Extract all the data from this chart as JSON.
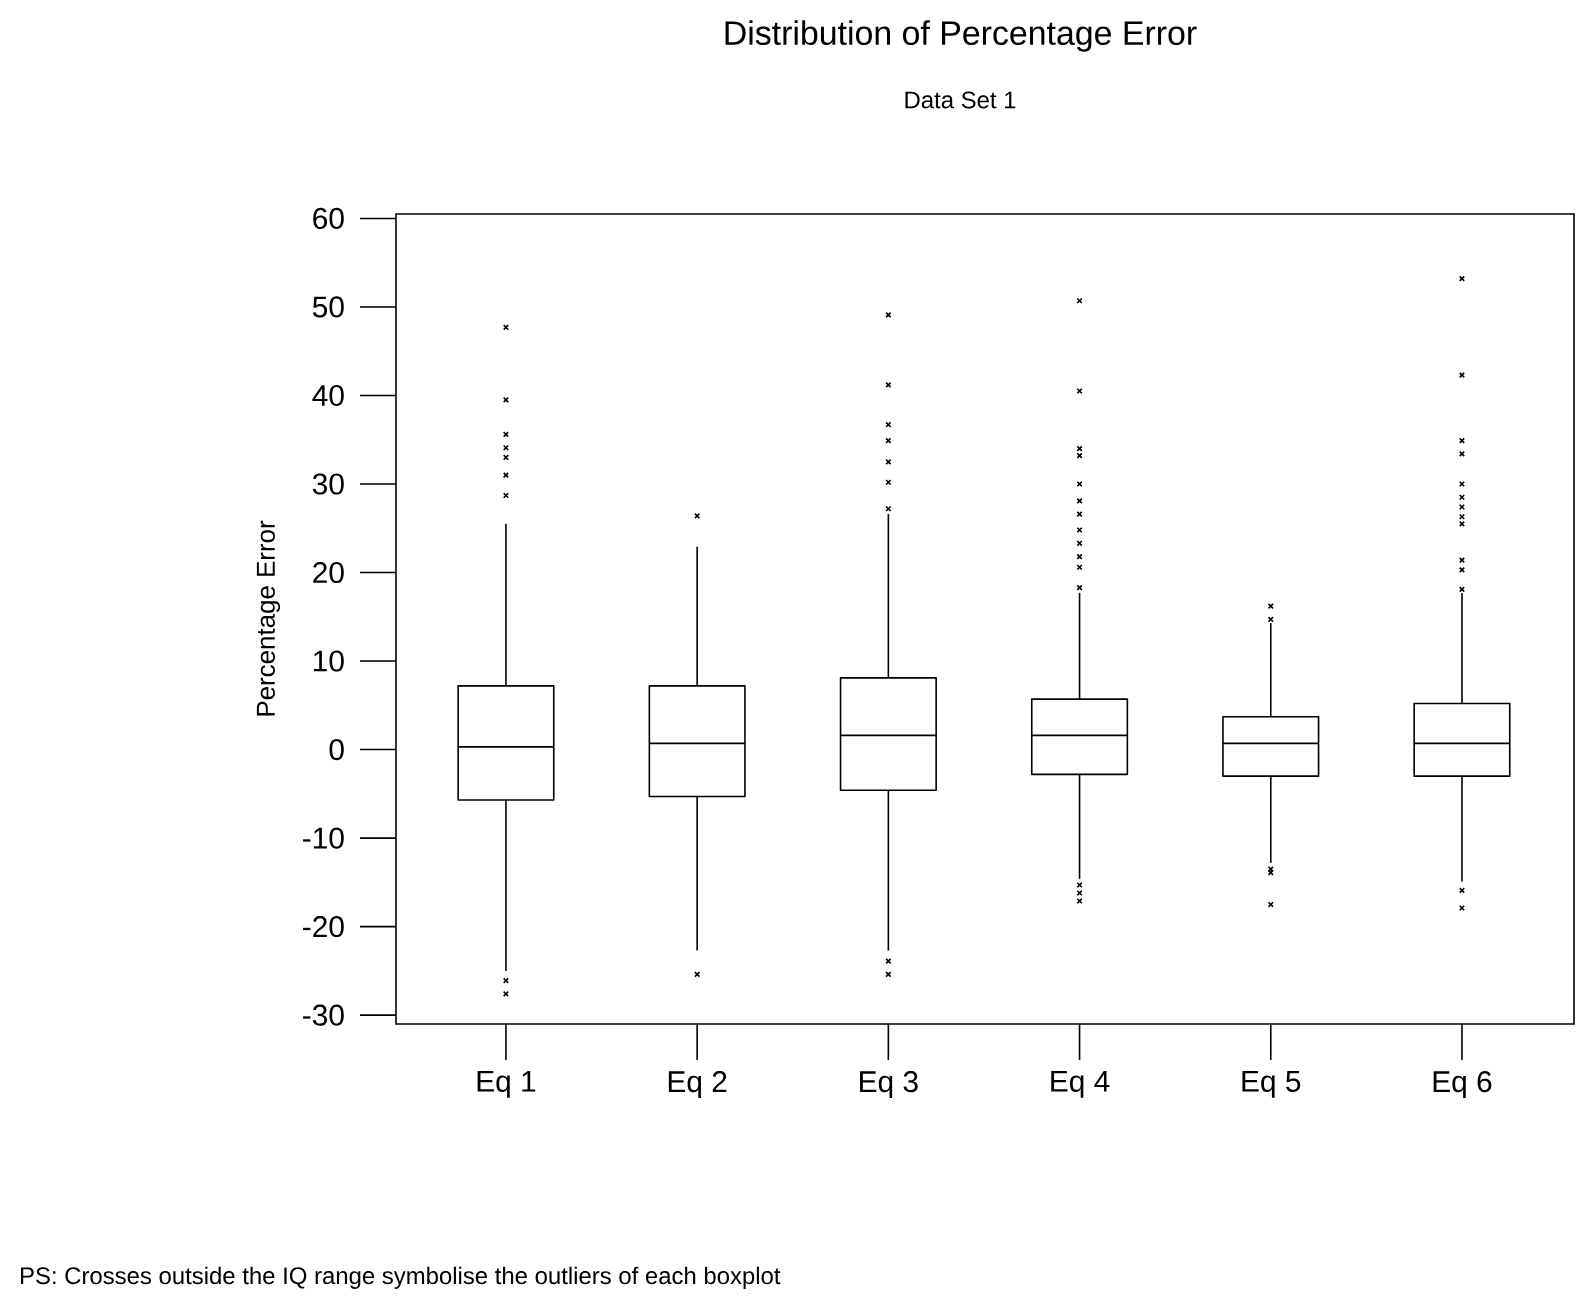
{
  "chart_data": {
    "type": "box",
    "title": "Distribution of Percentage Error",
    "subtitle": "Data Set 1",
    "ylabel": "Percentage Error",
    "categories": [
      "Eq 1",
      "Eq 2",
      "Eq 3",
      "Eq 4",
      "Eq 5",
      "Eq 6"
    ],
    "ylim": [
      -31,
      60.5
    ],
    "yticks": [
      -30,
      -20,
      -10,
      0,
      10,
      20,
      30,
      40,
      50,
      60
    ],
    "marker": "cross",
    "boxes": [
      {
        "low": -25.0,
        "q1": -5.7,
        "median": 0.3,
        "q3": 7.2,
        "high": 25.5,
        "outliers": [
          -27.6,
          -26.1,
          28.7,
          31.0,
          33.0,
          34.1,
          35.6,
          39.5,
          47.7
        ]
      },
      {
        "low": -22.7,
        "q1": -5.3,
        "median": 0.7,
        "q3": 7.2,
        "high": 22.9,
        "outliers": [
          -25.4,
          26.4
        ]
      },
      {
        "low": -22.7,
        "q1": -4.6,
        "median": 1.6,
        "q3": 8.1,
        "high": 26.6,
        "outliers": [
          -25.4,
          -23.9,
          27.2,
          30.2,
          32.5,
          34.9,
          36.7,
          41.2,
          49.1
        ]
      },
      {
        "low": -14.6,
        "q1": -2.8,
        "median": 1.6,
        "q3": 5.7,
        "high": 17.7,
        "outliers": [
          -17.1,
          -16.2,
          -15.3,
          18.3,
          20.6,
          21.8,
          23.3,
          24.8,
          26.6,
          28.1,
          30.0,
          33.2,
          34.0,
          40.5,
          50.7
        ]
      },
      {
        "low": -12.8,
        "q1": -3.0,
        "median": 0.7,
        "q3": 3.7,
        "high": 14.3,
        "outliers": [
          -17.5,
          -13.9,
          -13.5,
          14.7,
          16.2
        ]
      },
      {
        "low": -14.9,
        "q1": -3.0,
        "median": 0.7,
        "q3": 5.2,
        "high": 17.7,
        "outliers": [
          -17.9,
          -15.9,
          18.1,
          20.3,
          21.4,
          25.5,
          26.3,
          27.4,
          28.5,
          30.0,
          33.4,
          34.9,
          42.3,
          53.2
        ]
      }
    ],
    "annotations": [
      "PS: Crosses outside the IQ range symbolise the outliers of each boxplot"
    ]
  }
}
